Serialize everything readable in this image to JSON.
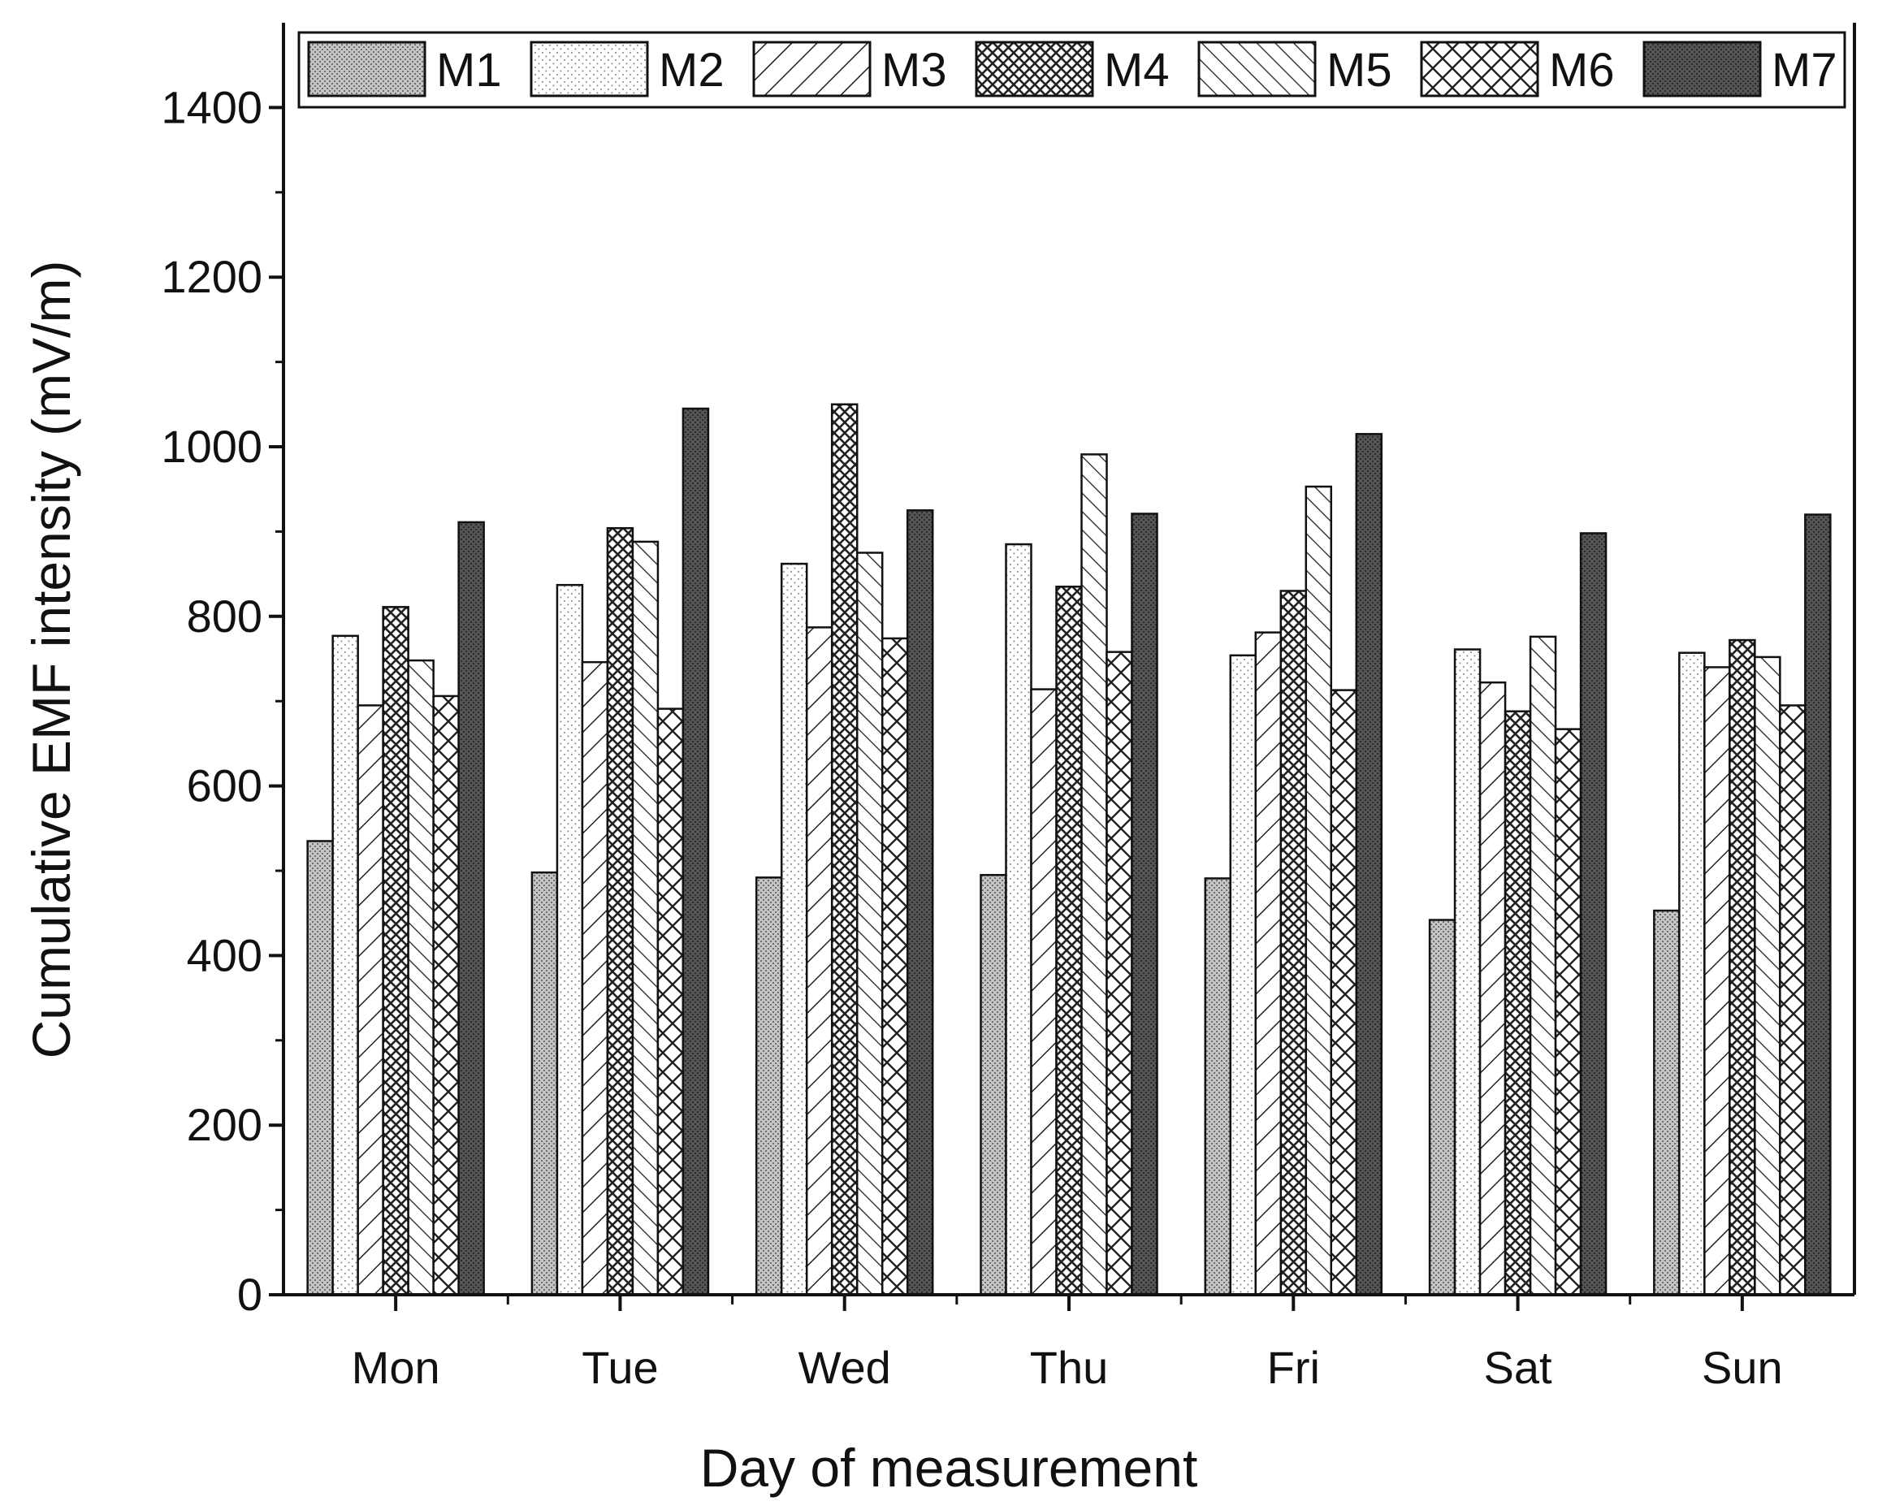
{
  "chart_data": {
    "type": "bar",
    "title": "",
    "xlabel": "Day of measurement",
    "ylabel": "Cumulative EMF intensity (mV/m)",
    "ylim": [
      0,
      1500
    ],
    "yticks": [
      0,
      200,
      400,
      600,
      800,
      1000,
      1200,
      1400
    ],
    "yticks_labeled": [
      "0",
      "200",
      "400",
      "600",
      "800",
      "1000",
      "1200",
      "1400"
    ],
    "legend_position": "top",
    "categories": [
      "Mon",
      "Tue",
      "Wed",
      "Thu",
      "Fri",
      "Sat",
      "Sun"
    ],
    "series": [
      {
        "name": "M1",
        "pattern": "dense-gray-dots",
        "values": [
          535,
          498,
          492,
          495,
          491,
          442,
          453
        ]
      },
      {
        "name": "M2",
        "pattern": "sparse-dots",
        "values": [
          777,
          837,
          862,
          885,
          754,
          761,
          757
        ]
      },
      {
        "name": "M3",
        "pattern": "forward-diagonal",
        "values": [
          695,
          746,
          787,
          714,
          781,
          722,
          740
        ]
      },
      {
        "name": "M4",
        "pattern": "dense-crosshatch",
        "values": [
          811,
          904,
          1050,
          835,
          830,
          688,
          772
        ]
      },
      {
        "name": "M5",
        "pattern": "backward-diagonal",
        "values": [
          748,
          888,
          875,
          991,
          953,
          776,
          752
        ]
      },
      {
        "name": "M6",
        "pattern": "wide-crosshatch",
        "values": [
          706,
          691,
          774,
          758,
          713,
          667,
          695
        ]
      },
      {
        "name": "M7",
        "pattern": "dark-solid",
        "values": [
          911,
          1045,
          925,
          921,
          1015,
          898,
          920
        ]
      }
    ]
  },
  "colors": {
    "axis": "#111111",
    "m1_fill": "#b9b9b9",
    "m7_fill": "#4a4a4a"
  }
}
